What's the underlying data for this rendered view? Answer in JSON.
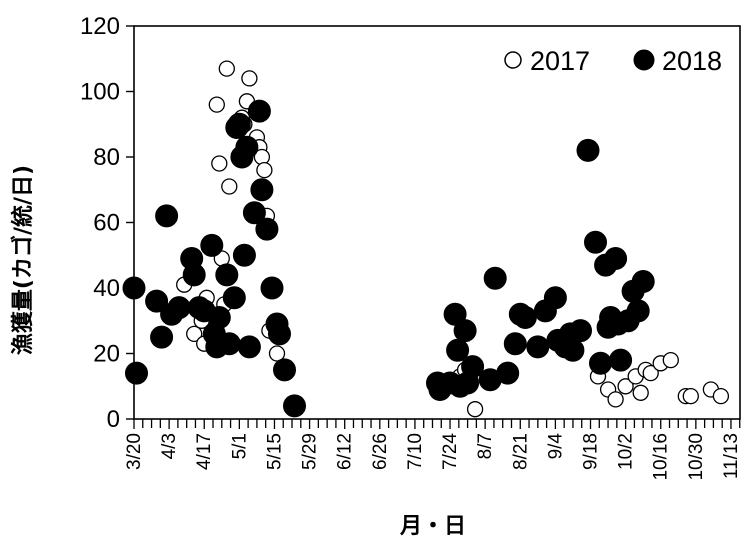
{
  "chart_data": {
    "type": "scatter",
    "title": "",
    "xlabel": "月・日",
    "ylabel": "漁獲量(カゴ/統/日)",
    "ylim": [
      0,
      120
    ],
    "yticks": [
      0,
      20,
      40,
      60,
      80,
      100,
      120
    ],
    "xlim": [
      "3/20",
      "11/17"
    ],
    "xtick_labels": [
      "3/20",
      "4/3",
      "4/17",
      "5/1",
      "5/15",
      "5/29",
      "6/12",
      "6/26",
      "7/10",
      "7/24",
      "8/7",
      "8/21",
      "9/4",
      "9/18",
      "10/2",
      "10/16",
      "10/30",
      "11/13"
    ],
    "legend_position": "top-right",
    "grid": false,
    "series": [
      {
        "name": "2017",
        "marker": "open-circle",
        "color": "#000000",
        "points": [
          [
            "4/9",
            41
          ],
          [
            "4/13",
            26
          ],
          [
            "4/15",
            34
          ],
          [
            "4/16",
            30
          ],
          [
            "4/17",
            23
          ],
          [
            "4/18",
            37
          ],
          [
            "4/22",
            96
          ],
          [
            "4/23",
            78
          ],
          [
            "4/24",
            49
          ],
          [
            "4/25",
            35
          ],
          [
            "4/26",
            107
          ],
          [
            "4/27",
            71
          ],
          [
            "5/2",
            92
          ],
          [
            "5/3",
            90
          ],
          [
            "5/4",
            97
          ],
          [
            "5/5",
            104
          ],
          [
            "5/8",
            86
          ],
          [
            "5/9",
            83
          ],
          [
            "5/10",
            80
          ],
          [
            "5/11",
            76
          ],
          [
            "5/12",
            62
          ],
          [
            "5/13",
            27
          ],
          [
            "5/16",
            20
          ],
          [
            "7/28",
            13
          ],
          [
            "7/30",
            15
          ],
          [
            "8/1",
            12
          ],
          [
            "8/3",
            3
          ],
          [
            "9/21",
            13
          ],
          [
            "9/25",
            9
          ],
          [
            "9/28",
            6
          ],
          [
            "10/2",
            10
          ],
          [
            "10/5",
            32
          ],
          [
            "10/6",
            13
          ],
          [
            "10/8",
            8
          ],
          [
            "10/10",
            15
          ],
          [
            "10/12",
            14
          ],
          [
            "10/16",
            17
          ],
          [
            "10/20",
            18
          ],
          [
            "10/26",
            7
          ],
          [
            "10/28",
            7
          ],
          [
            "11/5",
            9
          ],
          [
            "11/9",
            7
          ]
        ]
      },
      {
        "name": "2018",
        "marker": "filled-circle",
        "color": "#000000",
        "points": [
          [
            "3/20",
            40
          ],
          [
            "3/21",
            14
          ],
          [
            "3/29",
            36
          ],
          [
            "3/31",
            25
          ],
          [
            "4/2",
            62
          ],
          [
            "4/4",
            32
          ],
          [
            "4/7",
            34
          ],
          [
            "4/12",
            49
          ],
          [
            "4/13",
            44
          ],
          [
            "4/15",
            34
          ],
          [
            "4/17",
            33
          ],
          [
            "4/20",
            53
          ],
          [
            "4/21",
            26
          ],
          [
            "4/22",
            22
          ],
          [
            "4/23",
            31
          ],
          [
            "4/26",
            44
          ],
          [
            "4/27",
            23
          ],
          [
            "4/29",
            37
          ],
          [
            "4/30",
            89
          ],
          [
            "5/1",
            90
          ],
          [
            "5/2",
            80
          ],
          [
            "5/3",
            50
          ],
          [
            "5/4",
            83
          ],
          [
            "5/5",
            22
          ],
          [
            "5/7",
            63
          ],
          [
            "5/9",
            94
          ],
          [
            "5/10",
            70
          ],
          [
            "5/12",
            58
          ],
          [
            "5/14",
            40
          ],
          [
            "5/16",
            29
          ],
          [
            "5/17",
            26
          ],
          [
            "5/19",
            15
          ],
          [
            "5/23",
            4
          ],
          [
            "7/19",
            11
          ],
          [
            "7/20",
            9
          ],
          [
            "7/24",
            11
          ],
          [
            "7/26",
            32
          ],
          [
            "7/27",
            21
          ],
          [
            "7/28",
            10
          ],
          [
            "7/30",
            27
          ],
          [
            "7/31",
            11
          ],
          [
            "8/2",
            16
          ],
          [
            "8/9",
            12
          ],
          [
            "8/11",
            43
          ],
          [
            "8/16",
            14
          ],
          [
            "8/19",
            23
          ],
          [
            "8/21",
            32
          ],
          [
            "8/23",
            31
          ],
          [
            "8/28",
            22
          ],
          [
            "8/31",
            33
          ],
          [
            "9/4",
            37
          ],
          [
            "9/5",
            24
          ],
          [
            "9/7",
            24
          ],
          [
            "9/8",
            22
          ],
          [
            "9/10",
            26
          ],
          [
            "9/11",
            21
          ],
          [
            "9/14",
            27
          ],
          [
            "9/17",
            82
          ],
          [
            "9/20",
            54
          ],
          [
            "9/22",
            17
          ],
          [
            "9/24",
            47
          ],
          [
            "9/25",
            28
          ],
          [
            "9/26",
            31
          ],
          [
            "9/28",
            49
          ],
          [
            "9/29",
            29
          ],
          [
            "9/30",
            18
          ],
          [
            "10/3",
            30
          ],
          [
            "10/5",
            39
          ],
          [
            "10/7",
            33
          ],
          [
            "10/9",
            42
          ]
        ]
      }
    ]
  }
}
